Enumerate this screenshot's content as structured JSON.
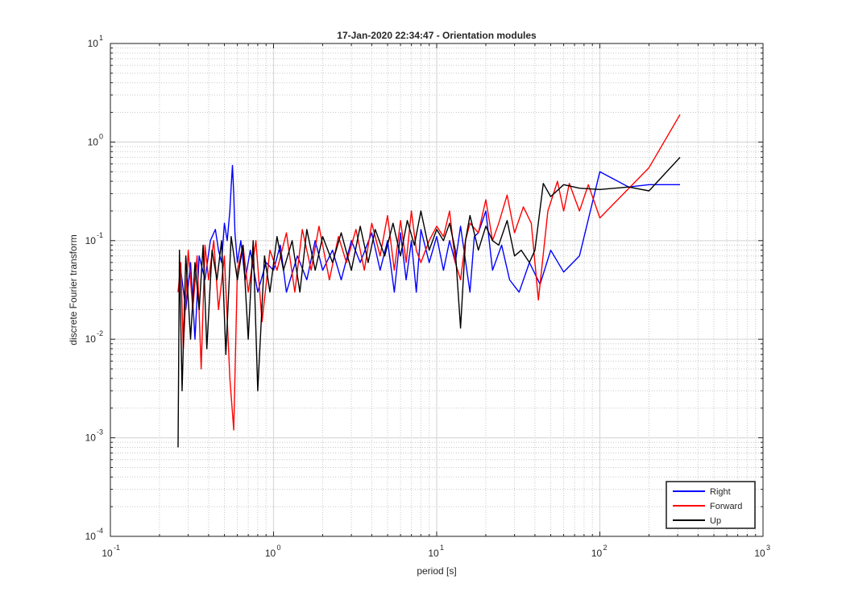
{
  "chart_data": {
    "type": "line",
    "title": "17-Jan-2020 22:34:47 - Orientation modules",
    "xlabel": "period [s]",
    "ylabel": "discrete Fourier transform",
    "xscale": "log",
    "yscale": "log",
    "xlim": [
      0.1,
      1000
    ],
    "ylim": [
      0.0001,
      10
    ],
    "grid": true,
    "minor_grid": true,
    "legend_position": "bottom-right",
    "x_ticks": [
      {
        "base": "10",
        "exp": "-1",
        "value": 0.1
      },
      {
        "base": "10",
        "exp": "0",
        "value": 1
      },
      {
        "base": "10",
        "exp": "1",
        "value": 10
      },
      {
        "base": "10",
        "exp": "2",
        "value": 100
      },
      {
        "base": "10",
        "exp": "3",
        "value": 1000
      }
    ],
    "y_ticks": [
      {
        "base": "10",
        "exp": "-4",
        "value": 0.0001
      },
      {
        "base": "10",
        "exp": "-3",
        "value": 0.001
      },
      {
        "base": "10",
        "exp": "-2",
        "value": 0.01
      },
      {
        "base": "10",
        "exp": "-1",
        "value": 0.1
      },
      {
        "base": "10",
        "exp": "0",
        "value": 1
      },
      {
        "base": "10",
        "exp": "1",
        "value": 10
      }
    ],
    "series": [
      {
        "name": "Right",
        "color": "#0000ff",
        "x": [
          0.26,
          0.27,
          0.29,
          0.31,
          0.33,
          0.35,
          0.38,
          0.41,
          0.44,
          0.46,
          0.48,
          0.5,
          0.52,
          0.54,
          0.55,
          0.56,
          0.57,
          0.58,
          0.6,
          0.63,
          0.67,
          0.72,
          0.8,
          0.9,
          1.0,
          1.1,
          1.2,
          1.4,
          1.6,
          1.8,
          2.0,
          2.3,
          2.6,
          3.0,
          3.4,
          4.0,
          4.5,
          5.0,
          5.5,
          6.0,
          6.5,
          7.0,
          7.5,
          8.0,
          9.0,
          10.0,
          11.0,
          12.0,
          13.0,
          14.0,
          16.0,
          17.0,
          18.0,
          20.0,
          22.0,
          25.0,
          28.0,
          32.0,
          37.0,
          43.0,
          50.0,
          60.0,
          75.0,
          100.0,
          150.0,
          200.0,
          310.0
        ],
        "y": [
          0.03,
          0.05,
          0.02,
          0.06,
          0.01,
          0.07,
          0.04,
          0.1,
          0.13,
          0.08,
          0.06,
          0.15,
          0.1,
          0.2,
          0.35,
          0.58,
          0.3,
          0.12,
          0.06,
          0.1,
          0.04,
          0.08,
          0.03,
          0.06,
          0.05,
          0.09,
          0.03,
          0.07,
          0.04,
          0.1,
          0.05,
          0.08,
          0.04,
          0.1,
          0.06,
          0.12,
          0.05,
          0.1,
          0.03,
          0.12,
          0.04,
          0.1,
          0.03,
          0.13,
          0.06,
          0.11,
          0.05,
          0.1,
          0.06,
          0.14,
          0.03,
          0.11,
          0.12,
          0.2,
          0.05,
          0.09,
          0.04,
          0.03,
          0.06,
          0.036,
          0.08,
          0.048,
          0.07,
          0.5,
          0.35,
          0.37,
          0.37
        ]
      },
      {
        "name": "Forward",
        "color": "#ff0000",
        "x": [
          0.26,
          0.27,
          0.28,
          0.3,
          0.32,
          0.34,
          0.36,
          0.38,
          0.4,
          0.43,
          0.46,
          0.5,
          0.54,
          0.57,
          0.6,
          0.65,
          0.7,
          0.78,
          0.85,
          0.95,
          1.05,
          1.2,
          1.35,
          1.5,
          1.7,
          1.9,
          2.2,
          2.5,
          2.8,
          3.2,
          3.6,
          4.0,
          4.5,
          5.0,
          5.5,
          6.0,
          6.5,
          7.0,
          7.5,
          8.0,
          9.0,
          10.0,
          11.0,
          12.0,
          13.0,
          14.0,
          15.0,
          16.0,
          18.0,
          20.0,
          22.0,
          24.0,
          27.0,
          30.0,
          34.0,
          38.0,
          42.0,
          48.0,
          55.0,
          60.0,
          65.0,
          75.0,
          85.0,
          100.0,
          200.0,
          310.0
        ],
        "y": [
          0.03,
          0.06,
          0.008,
          0.08,
          0.02,
          0.07,
          0.005,
          0.09,
          0.04,
          0.1,
          0.02,
          0.07,
          0.004,
          0.0012,
          0.05,
          0.09,
          0.03,
          0.1,
          0.015,
          0.08,
          0.05,
          0.12,
          0.03,
          0.13,
          0.05,
          0.14,
          0.04,
          0.11,
          0.06,
          0.13,
          0.05,
          0.15,
          0.07,
          0.18,
          0.05,
          0.16,
          0.06,
          0.2,
          0.08,
          0.06,
          0.1,
          0.14,
          0.11,
          0.2,
          0.06,
          0.04,
          0.1,
          0.15,
          0.12,
          0.26,
          0.1,
          0.15,
          0.29,
          0.12,
          0.22,
          0.15,
          0.025,
          0.2,
          0.4,
          0.2,
          0.38,
          0.2,
          0.37,
          0.17,
          0.55,
          1.9
        ]
      },
      {
        "name": "Up",
        "color": "#000000",
        "x": [
          0.26,
          0.265,
          0.275,
          0.29,
          0.31,
          0.33,
          0.35,
          0.37,
          0.39,
          0.42,
          0.45,
          0.48,
          0.51,
          0.55,
          0.6,
          0.65,
          0.7,
          0.75,
          0.8,
          0.88,
          0.95,
          1.05,
          1.15,
          1.3,
          1.45,
          1.6,
          1.8,
          2.0,
          2.3,
          2.6,
          3.0,
          3.4,
          3.8,
          4.2,
          4.8,
          5.4,
          6.0,
          6.6,
          7.3,
          8.0,
          9.0,
          10.0,
          11.0,
          12.0,
          13.0,
          14.0,
          15.0,
          16.0,
          18.0,
          20.0,
          22.0,
          24.0,
          27.0,
          30.0,
          33.0,
          37.0,
          40.0,
          45.0,
          50.0,
          60.0,
          75.0,
          100.0,
          150.0,
          200.0,
          310.0
        ],
        "y": [
          0.0008,
          0.08,
          0.003,
          0.07,
          0.01,
          0.06,
          0.02,
          0.09,
          0.008,
          0.08,
          0.04,
          0.1,
          0.007,
          0.11,
          0.04,
          0.09,
          0.01,
          0.1,
          0.003,
          0.07,
          0.03,
          0.11,
          0.05,
          0.1,
          0.03,
          0.13,
          0.05,
          0.11,
          0.06,
          0.12,
          0.05,
          0.14,
          0.06,
          0.13,
          0.07,
          0.15,
          0.07,
          0.16,
          0.09,
          0.2,
          0.08,
          0.13,
          0.1,
          0.15,
          0.08,
          0.013,
          0.1,
          0.18,
          0.08,
          0.14,
          0.1,
          0.09,
          0.16,
          0.07,
          0.08,
          0.06,
          0.08,
          0.38,
          0.28,
          0.37,
          0.34,
          0.33,
          0.35,
          0.32,
          0.7
        ]
      }
    ]
  }
}
